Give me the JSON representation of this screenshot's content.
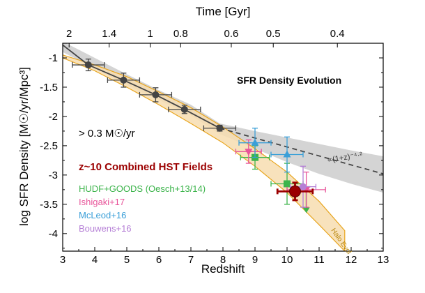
{
  "chart_data": {
    "type": "scatter",
    "title": "SFR Density Evolution",
    "xlabel": "Redshift",
    "ylabel": "log SFR Density [M☉/yr/Mpc³]",
    "top_xlabel": "Time [Gyr]",
    "xlim": [
      3,
      13
    ],
    "ylim": [
      -4.3,
      -0.75
    ],
    "grid": false,
    "x_ticks": [
      3,
      4,
      5,
      6,
      7,
      8,
      9,
      10,
      11,
      12,
      13
    ],
    "y_ticks": [
      -1,
      -1.5,
      -2,
      -2.5,
      -3,
      -3.5,
      -4
    ],
    "x_tick_labels": [
      "3",
      "4",
      "5",
      "6",
      "7",
      "8",
      "9",
      "10",
      "11",
      "12",
      "13"
    ],
    "y_tick_labels": [
      "-1",
      "-1.5",
      "-2",
      "-2.5",
      "-3",
      "-3.5",
      "-4"
    ],
    "top_ticks": [
      {
        "label": "2",
        "z": 3.2
      },
      {
        "label": "1.4",
        "z": 4.45
      },
      {
        "label": "1",
        "z": 5.73
      },
      {
        "label": "0.8",
        "z": 6.68
      },
      {
        "label": "0.6",
        "z": 8.26
      },
      {
        "label": "0.5",
        "z": 9.57
      },
      {
        "label": "0.4",
        "z": 11.57
      }
    ],
    "annotations": {
      "threshold": "> 0.3 M☉/yr",
      "z10": "z~10 Combined HST Fields",
      "powerlaw": "∝(1+z)⁻⁴·²",
      "halo": "Halo Evol"
    },
    "series": [
      {
        "name": "",
        "color": "#444444",
        "marker": "circle",
        "points": [
          {
            "x": 3.8,
            "y": -1.12,
            "xerr": 0.5,
            "yerr": 0.1
          },
          {
            "x": 4.9,
            "y": -1.38,
            "xerr": 0.5,
            "yerr": 0.12
          },
          {
            "x": 5.9,
            "y": -1.63,
            "xerr": 0.5,
            "yerr": 0.12
          },
          {
            "x": 6.8,
            "y": -1.88,
            "xerr": 0.5,
            "yerr": 0.07
          },
          {
            "x": 7.9,
            "y": -2.2,
            "xerr": 0.5,
            "yerr": 0.05
          }
        ]
      },
      {
        "name": "HUDF+GOODS (Oesch+13/14)",
        "color": "#3cb44b",
        "marker": "square",
        "points": [
          {
            "x": 9.0,
            "y": -2.7,
            "xerr": 0.45,
            "yerr": 0.2
          },
          {
            "x": 10.0,
            "y": -3.15,
            "xerr": 0.5,
            "yerr": 0.35
          }
        ],
        "upper_limit": {
          "x": 10.6,
          "y": -3.2,
          "to": -3.65
        }
      },
      {
        "name": "Ishigaki+17",
        "color": "#e8559a",
        "marker": "triangle-down",
        "points": [
          {
            "x": 8.8,
            "y": -2.6,
            "xerr": 0.4,
            "yerr": 0.2
          },
          {
            "x": 10.6,
            "y": -3.25,
            "xerr": 0.6,
            "yerr": 0.3
          }
        ]
      },
      {
        "name": "McLeod+16",
        "color": "#3a9fd8",
        "marker": "triangle-up",
        "points": [
          {
            "x": 9.0,
            "y": -2.45,
            "xerr": 0.5,
            "yerr": 0.25
          },
          {
            "x": 10.0,
            "y": -2.65,
            "xerr": 0.5,
            "yerr": 0.3
          }
        ]
      },
      {
        "name": "Bouwens+16",
        "color": "#b57fd6",
        "marker": "circle",
        "points": [
          {
            "x": 10.5,
            "y": -3.2,
            "xerr": 0.4,
            "yerr": 0.35
          }
        ]
      },
      {
        "name": "z~10 Combined HST Fields",
        "color": "#9b0000",
        "marker": "circle-large",
        "points": [
          {
            "x": 10.25,
            "y": -3.28,
            "xerr": 0.55,
            "yerr": 0.15
          }
        ]
      }
    ],
    "lines": {
      "gray_fit_x": [
        3.0,
        3.8,
        4.9,
        5.9,
        6.8,
        7.9
      ],
      "gray_fit_y": [
        -0.78,
        -1.12,
        -1.38,
        -1.63,
        -1.88,
        -2.2
      ],
      "powerlaw_x": [
        7.9,
        13.0
      ],
      "powerlaw_y": [
        -2.2,
        -2.98
      ],
      "gray_band_x": [
        3.0,
        4.0,
        5.0,
        6.0,
        7.0,
        7.9,
        9.0,
        10.0,
        11.0,
        12.0,
        13.0
      ],
      "gray_band_upper": [
        -0.72,
        -1.0,
        -1.28,
        -1.55,
        -1.8,
        -2.12,
        -2.25,
        -2.36,
        -2.47,
        -2.58,
        -2.68
      ],
      "gray_band_lower": [
        -0.9,
        -1.18,
        -1.46,
        -1.72,
        -1.98,
        -2.3,
        -2.55,
        -2.78,
        -2.98,
        -3.15,
        -3.3
      ],
      "halo_band_x": [
        3.0,
        4.0,
        5.0,
        6.0,
        7.0,
        8.0,
        9.0,
        10.0,
        11.0,
        11.8
      ],
      "halo_band_upper": [
        -0.95,
        -1.12,
        -1.32,
        -1.58,
        -1.85,
        -2.18,
        -2.55,
        -2.95,
        -3.45,
        -3.95
      ],
      "halo_band_lower": [
        -1.0,
        -1.22,
        -1.5,
        -1.8,
        -2.12,
        -2.45,
        -2.85,
        -3.3,
        -3.85,
        -4.3
      ]
    }
  },
  "colors": {
    "halo_fill": "#f7ddb0",
    "halo_stroke": "#e8a51e",
    "gray_fill": "#d4d4d4",
    "text_red": "#9b0000"
  }
}
